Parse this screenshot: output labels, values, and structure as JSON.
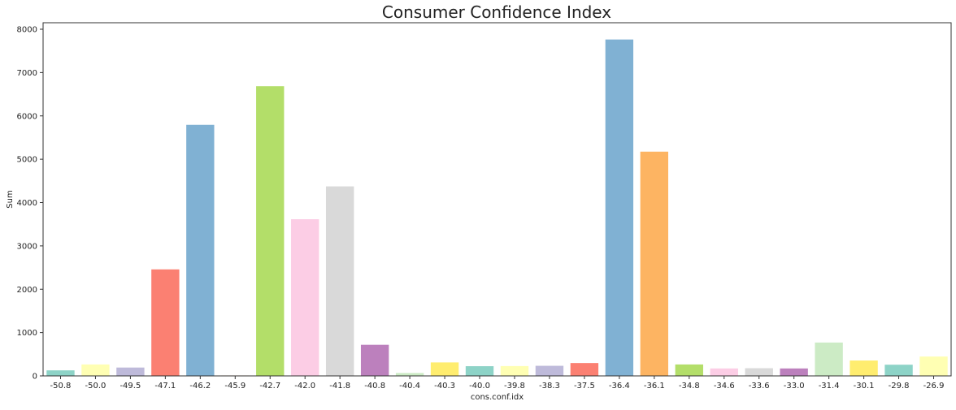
{
  "chart_data": {
    "type": "bar",
    "title": "Consumer Confidence Index",
    "xlabel": "cons.conf.idx",
    "ylabel": "Sum",
    "ylim": [
      0,
      8150
    ],
    "yticks": [
      0,
      1000,
      2000,
      3000,
      4000,
      5000,
      6000,
      7000,
      8000
    ],
    "ytick_labels": [
      "0",
      "1000",
      "2000",
      "3000",
      "4000",
      "5000",
      "6000",
      "7000",
      "8000"
    ],
    "categories": [
      "-50.8",
      "-50.0",
      "-49.5",
      "-47.1",
      "-46.2",
      "-45.9",
      "-42.7",
      "-42.0",
      "-41.8",
      "-40.8",
      "-40.4",
      "-40.3",
      "-40.0",
      "-39.8",
      "-38.3",
      "-37.5",
      "-36.4",
      "-36.1",
      "-34.8",
      "-34.6",
      "-33.6",
      "-33.0",
      "-31.4",
      "-30.1",
      "-29.8",
      "-26.9"
    ],
    "values": [
      128,
      264,
      193,
      2458,
      5794,
      10,
      6685,
      3616,
      4374,
      718,
      67,
      311,
      224,
      227,
      233,
      297,
      7763,
      5175,
      264,
      172,
      178,
      172,
      770,
      355,
      258,
      447
    ],
    "colors": [
      "#8dd3c7",
      "#ffffb3",
      "#bebada",
      "#fb8072",
      "#80b1d3",
      "#fdb462",
      "#b3de69",
      "#fccde5",
      "#d9d9d9",
      "#bc80bd",
      "#ccebc5",
      "#ffed6f",
      "#8dd3c7",
      "#ffffb3",
      "#bebada",
      "#fb8072",
      "#80b1d3",
      "#fdb462",
      "#b3de69",
      "#fccde5",
      "#d9d9d9",
      "#bc80bd",
      "#ccebc5",
      "#ffed6f",
      "#8dd3c7",
      "#ffffb3"
    ],
    "grid": false,
    "legend": "none"
  }
}
